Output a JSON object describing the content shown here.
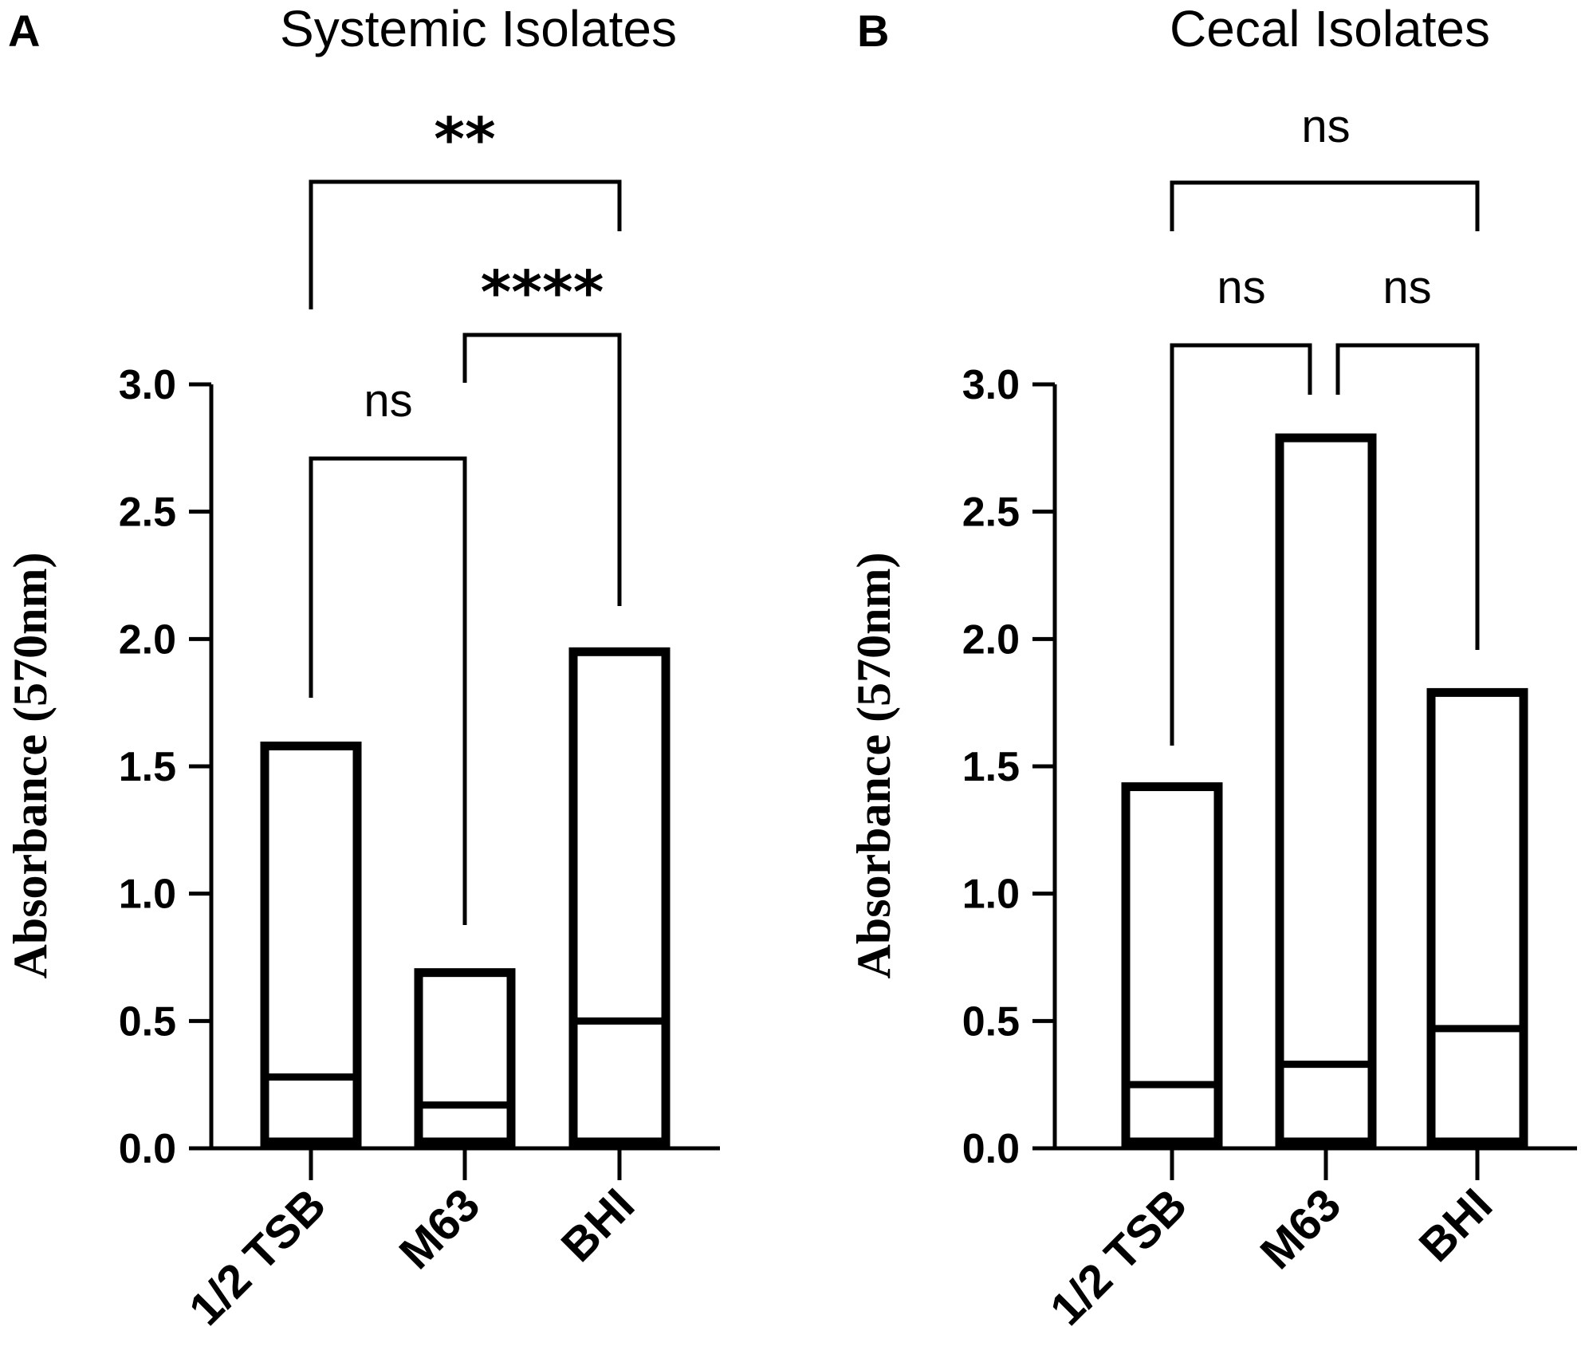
{
  "chart_data": [
    {
      "panel": "A",
      "type": "bar",
      "title": "Systemic Isolates",
      "ylabel": "Absorbance (570nm)",
      "xlabel": "",
      "ylim": [
        0,
        3.0
      ],
      "yticks": [
        "0.0",
        "0.5",
        "1.0",
        "1.5",
        "2.0",
        "2.5",
        "3.0"
      ],
      "categories": [
        "1/2 TSB",
        "M63",
        "BHI"
      ],
      "series": [
        {
          "name": "max",
          "values": [
            1.58,
            0.69,
            1.95
          ]
        },
        {
          "name": "median",
          "values": [
            0.28,
            0.17,
            0.5
          ]
        }
      ],
      "comparisons": [
        {
          "pair": [
            "1/2 TSB",
            "M63"
          ],
          "label": "ns"
        },
        {
          "pair": [
            "M63",
            "BHI"
          ],
          "label": "****"
        },
        {
          "pair": [
            "1/2 TSB",
            "BHI"
          ],
          "label": "**"
        }
      ]
    },
    {
      "panel": "B",
      "type": "bar",
      "title": "Cecal Isolates",
      "ylabel": "Absorbance  (570nm)",
      "xlabel": "",
      "ylim": [
        0,
        3.0
      ],
      "yticks": [
        "0.0",
        "0.5",
        "1.0",
        "1.5",
        "2.0",
        "2.5",
        "3.0"
      ],
      "categories": [
        "1/2 TSB",
        "M63",
        "BHI"
      ],
      "series": [
        {
          "name": "max",
          "values": [
            1.42,
            2.79,
            1.79
          ]
        },
        {
          "name": "median",
          "values": [
            0.25,
            0.33,
            0.47
          ]
        }
      ],
      "comparisons": [
        {
          "pair": [
            "1/2 TSB",
            "M63"
          ],
          "label": "ns"
        },
        {
          "pair": [
            "M63",
            "BHI"
          ],
          "label": "ns"
        },
        {
          "pair": [
            "1/2 TSB",
            "BHI"
          ],
          "label": "ns"
        }
      ]
    }
  ]
}
